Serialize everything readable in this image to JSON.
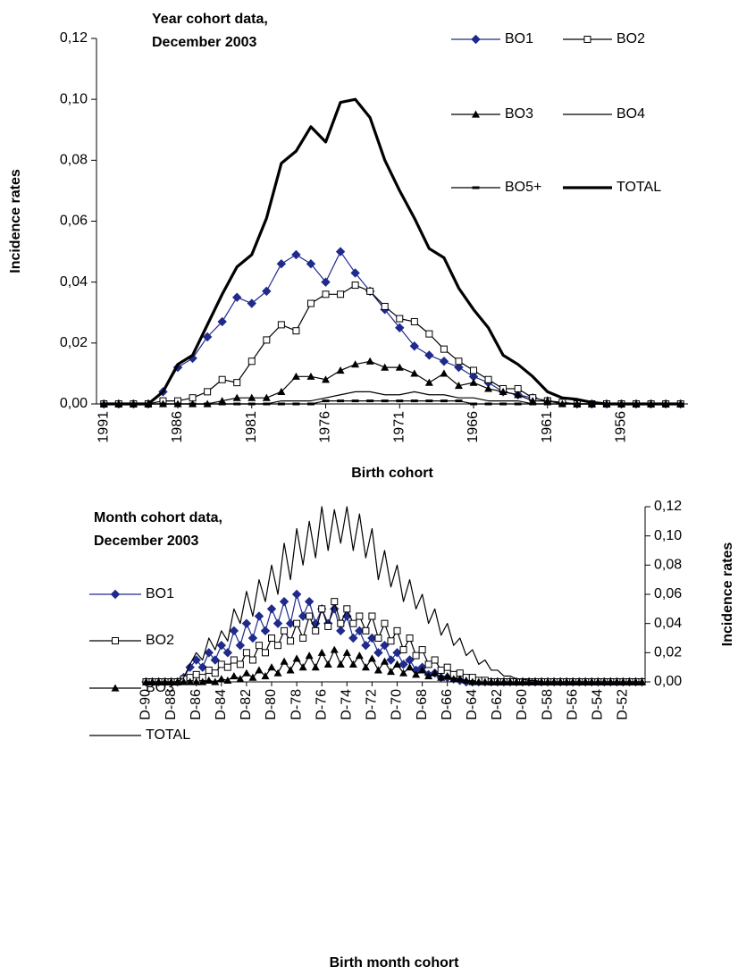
{
  "chart_data": [
    {
      "type": "line",
      "title": [
        "Year cohort data,",
        "December 2003"
      ],
      "ylabel": "Incidence rates",
      "xlabel": "Birth cohort",
      "y_axis_side": "left",
      "legend": "top-right",
      "categories": [
        "1991",
        null,
        null,
        null,
        null,
        "1986",
        null,
        null,
        null,
        null,
        "1981",
        null,
        null,
        null,
        null,
        "1976",
        null,
        null,
        null,
        null,
        "1971",
        null,
        null,
        null,
        null,
        "1966",
        null,
        null,
        null,
        null,
        "1961",
        null,
        null,
        null,
        null,
        "1956",
        null,
        null,
        null,
        null
      ],
      "ylim": [
        0,
        0.12
      ],
      "yticks": [
        {
          "value": 0,
          "label": "0,00"
        },
        {
          "value": 0.02,
          "label": "0,02"
        },
        {
          "value": 0.04,
          "label": "0,04"
        },
        {
          "value": 0.06,
          "label": "0,06"
        },
        {
          "value": 0.08,
          "label": "0,08"
        },
        {
          "value": 0.1,
          "label": "0,10"
        },
        {
          "value": 0.12,
          "label": "0,12"
        }
      ],
      "series": [
        {
          "name": "BO1",
          "color": "#1f2a8c",
          "marker": "diamond",
          "width": 1.2,
          "values": [
            0,
            0,
            0,
            0,
            0.004,
            0.012,
            0.015,
            0.022,
            0.027,
            0.035,
            0.033,
            0.037,
            0.046,
            0.049,
            0.046,
            0.04,
            0.05,
            0.043,
            0.037,
            0.031,
            0.025,
            0.019,
            0.016,
            0.014,
            0.012,
            0.009,
            0.007,
            0.004,
            0.003,
            0.002,
            0.001,
            0.0005,
            0,
            0,
            0,
            0,
            0,
            0,
            0,
            0
          ]
        },
        {
          "name": "BO2",
          "color": "#000000",
          "marker": "square",
          "width": 1.2,
          "values": [
            0,
            0,
            0,
            0,
            0.001,
            0.001,
            0.002,
            0.004,
            0.008,
            0.007,
            0.014,
            0.021,
            0.026,
            0.024,
            0.033,
            0.036,
            0.036,
            0.039,
            0.037,
            0.032,
            0.028,
            0.027,
            0.023,
            0.018,
            0.014,
            0.011,
            0.008,
            0.005,
            0.005,
            0.002,
            0.001,
            0.0005,
            0,
            0,
            0,
            0,
            0,
            0,
            0,
            0
          ]
        },
        {
          "name": "BO3",
          "color": "#000000",
          "marker": "triangle",
          "width": 1.2,
          "values": [
            0,
            0,
            0,
            0,
            0,
            0,
            0,
            0,
            0.001,
            0.002,
            0.002,
            0.002,
            0.004,
            0.009,
            0.009,
            0.008,
            0.011,
            0.013,
            0.014,
            0.012,
            0.012,
            0.01,
            0.007,
            0.01,
            0.006,
            0.007,
            0.005,
            0.004,
            0.003,
            0.001,
            0.001,
            0,
            0,
            0,
            0,
            0,
            0,
            0,
            0,
            0
          ]
        },
        {
          "name": "BO4",
          "color": "#000000",
          "marker": "none",
          "width": 1.2,
          "values": [
            0,
            0,
            0,
            0,
            0,
            0,
            0,
            0,
            0,
            0,
            0,
            0,
            0.001,
            0.001,
            0.001,
            0.002,
            0.003,
            0.004,
            0.004,
            0.003,
            0.003,
            0.004,
            0.003,
            0.003,
            0.002,
            0.002,
            0.001,
            0.001,
            0.001,
            0,
            0,
            0,
            0,
            0,
            0,
            0,
            0,
            0,
            0,
            0
          ]
        },
        {
          "name": "BO5+",
          "color": "#000000",
          "marker": "dash",
          "width": 1.2,
          "values": [
            0,
            0,
            0,
            0,
            0,
            0,
            0,
            0,
            0,
            0,
            0,
            0,
            0,
            0,
            0,
            0.001,
            0.001,
            0.001,
            0.001,
            0.001,
            0.001,
            0.001,
            0.001,
            0.001,
            0.001,
            0,
            0,
            0,
            0,
            0,
            0,
            0,
            0,
            0,
            0,
            0,
            0,
            0,
            0,
            0
          ]
        },
        {
          "name": "TOTAL",
          "color": "#000000",
          "marker": "none",
          "width": 3.2,
          "values": [
            0,
            0,
            0,
            0,
            0.004,
            0.013,
            0.016,
            0.026,
            0.036,
            0.045,
            0.049,
            0.061,
            0.079,
            0.083,
            0.091,
            0.086,
            0.099,
            0.1,
            0.094,
            0.08,
            0.07,
            0.061,
            0.051,
            0.048,
            0.038,
            0.031,
            0.025,
            0.016,
            0.013,
            0.009,
            0.004,
            0.002,
            0.0015,
            0.0005,
            0,
            0,
            0,
            0,
            0,
            0
          ]
        }
      ]
    },
    {
      "type": "line",
      "title": [
        "Month cohort data,",
        "December 2003"
      ],
      "ylabel": "Incidence rates",
      "xlabel": "Birth month cohort",
      "y_axis_side": "right",
      "legend": "left",
      "categories": [
        "D-90",
        null,
        null,
        null,
        "D-88",
        null,
        null,
        null,
        "D-86",
        null,
        null,
        null,
        "D-84",
        null,
        null,
        null,
        "D-82",
        null,
        null,
        null,
        "D-80",
        null,
        null,
        null,
        "D-78",
        null,
        null,
        null,
        "D-76",
        null,
        null,
        null,
        "D-74",
        null,
        null,
        null,
        "D-72",
        null,
        null,
        null,
        "D-70",
        null,
        null,
        null,
        "D-68",
        null,
        null,
        null,
        "D-66",
        null,
        null,
        null,
        "D-64",
        null,
        null,
        null,
        "D-62",
        null,
        null,
        null,
        "D-60",
        null,
        null,
        null,
        "D-58",
        null,
        null,
        null,
        "D-56",
        null,
        null,
        null,
        "D-54",
        null,
        null,
        null,
        "D-52",
        null,
        null,
        null
      ],
      "ylim": [
        0,
        0.12
      ],
      "yticks": [
        {
          "value": 0,
          "label": "0,00"
        },
        {
          "value": 0.02,
          "label": "0,02"
        },
        {
          "value": 0.04,
          "label": "0,04"
        },
        {
          "value": 0.06,
          "label": "0,06"
        },
        {
          "value": 0.08,
          "label": "0,08"
        },
        {
          "value": 0.1,
          "label": "0,10"
        },
        {
          "value": 0.12,
          "label": "0,12"
        }
      ],
      "series": [
        {
          "name": "BO1",
          "color": "#1f2a8c",
          "marker": "diamond",
          "width": 1.2,
          "values": [
            0,
            0,
            0,
            0,
            0,
            0,
            0.003,
            0.01,
            0.015,
            0.01,
            0.02,
            0.015,
            0.025,
            0.02,
            0.035,
            0.025,
            0.04,
            0.03,
            0.045,
            0.035,
            0.05,
            0.04,
            0.055,
            0.04,
            0.06,
            0.045,
            0.055,
            0.04,
            0.05,
            0.04,
            0.05,
            0.035,
            0.045,
            0.03,
            0.035,
            0.025,
            0.03,
            0.02,
            0.025,
            0.015,
            0.02,
            0.012,
            0.015,
            0.008,
            0.01,
            0.005,
            0.006,
            0.003,
            0.003,
            0.002,
            0.001,
            0,
            0,
            0,
            0,
            0,
            0,
            0,
            0,
            0,
            0,
            0,
            0,
            0,
            0,
            0,
            0,
            0,
            0,
            0,
            0,
            0,
            0,
            0,
            0,
            0,
            0,
            0,
            0,
            0
          ]
        },
        {
          "name": "BO2",
          "color": "#000000",
          "marker": "square",
          "width": 1.2,
          "values": [
            0,
            0,
            0,
            0,
            0,
            0,
            0.002,
            0.003,
            0.005,
            0.003,
            0.008,
            0.006,
            0.012,
            0.01,
            0.015,
            0.012,
            0.02,
            0.015,
            0.025,
            0.02,
            0.03,
            0.025,
            0.035,
            0.028,
            0.04,
            0.03,
            0.045,
            0.035,
            0.05,
            0.038,
            0.055,
            0.04,
            0.05,
            0.04,
            0.045,
            0.035,
            0.045,
            0.03,
            0.04,
            0.028,
            0.035,
            0.022,
            0.03,
            0.018,
            0.022,
            0.012,
            0.015,
            0.008,
            0.01,
            0.005,
            0.006,
            0.003,
            0.003,
            0.001,
            0.001,
            0,
            0,
            0,
            0,
            0,
            0,
            0,
            0,
            0,
            0,
            0,
            0,
            0,
            0,
            0,
            0,
            0,
            0,
            0,
            0,
            0,
            0,
            0,
            0,
            0
          ]
        },
        {
          "name": "BO3",
          "color": "#000000",
          "marker": "triangle",
          "width": 1.2,
          "values": [
            0,
            0,
            0,
            0,
            0,
            0,
            0,
            0,
            0,
            0,
            0.001,
            0,
            0.002,
            0.001,
            0.004,
            0.002,
            0.006,
            0.003,
            0.008,
            0.004,
            0.01,
            0.006,
            0.014,
            0.008,
            0.016,
            0.01,
            0.018,
            0.01,
            0.02,
            0.012,
            0.022,
            0.012,
            0.02,
            0.012,
            0.018,
            0.01,
            0.016,
            0.008,
            0.014,
            0.007,
            0.012,
            0.006,
            0.01,
            0.005,
            0.008,
            0.004,
            0.006,
            0.003,
            0.004,
            0.002,
            0.002,
            0.001,
            0,
            0,
            0,
            0,
            0,
            0,
            0,
            0,
            0,
            0,
            0,
            0,
            0,
            0,
            0,
            0,
            0,
            0,
            0,
            0,
            0,
            0,
            0,
            0,
            0,
            0,
            0,
            0
          ]
        },
        {
          "name": "TOTAL",
          "color": "#000000",
          "marker": "none",
          "width": 1.2,
          "values": [
            0,
            0,
            0,
            0,
            0,
            0,
            0.003,
            0.012,
            0.02,
            0.015,
            0.03,
            0.022,
            0.035,
            0.028,
            0.05,
            0.04,
            0.062,
            0.045,
            0.07,
            0.055,
            0.08,
            0.06,
            0.095,
            0.07,
            0.105,
            0.08,
            0.11,
            0.085,
            0.12,
            0.09,
            0.118,
            0.095,
            0.12,
            0.09,
            0.115,
            0.085,
            0.105,
            0.07,
            0.09,
            0.065,
            0.08,
            0.055,
            0.07,
            0.05,
            0.06,
            0.04,
            0.05,
            0.032,
            0.04,
            0.025,
            0.03,
            0.018,
            0.022,
            0.012,
            0.015,
            0.008,
            0.008,
            0.004,
            0.004,
            0.002,
            0.002,
            0.001,
            0.001,
            0,
            0,
            0,
            0,
            0,
            0,
            0,
            0,
            0,
            0,
            0,
            0,
            0,
            0,
            0,
            0,
            0
          ]
        }
      ]
    }
  ]
}
